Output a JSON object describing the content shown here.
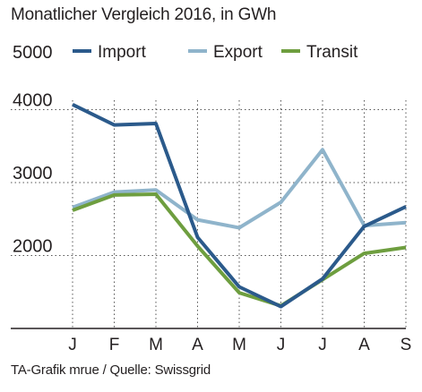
{
  "chart_data": {
    "type": "line",
    "title": "Monatlicher Vergleich 2016, in GWh",
    "source": "TA-Grafik mrue / Quelle: Swissgrid",
    "categories": [
      "J",
      "F",
      "M",
      "A",
      "M",
      "J",
      "J",
      "A",
      "S"
    ],
    "yticks": [
      2000,
      3000,
      4000,
      5000
    ],
    "ylim": [
      1000,
      5000
    ],
    "grid": true,
    "legend": "top",
    "series": [
      {
        "name": "Import",
        "color": "#2b5a8b",
        "values": [
          4070,
          3790,
          3810,
          2250,
          1570,
          1300,
          1680,
          2400,
          2670
        ]
      },
      {
        "name": "Export",
        "color": "#8fb4cb",
        "values": [
          2660,
          2870,
          2900,
          2490,
          2380,
          2730,
          3450,
          2410,
          2450
        ]
      },
      {
        "name": "Transit",
        "color": "#6e9e3f",
        "values": [
          2620,
          2830,
          2840,
          2130,
          1490,
          1310,
          1670,
          2030,
          2110
        ]
      }
    ]
  }
}
